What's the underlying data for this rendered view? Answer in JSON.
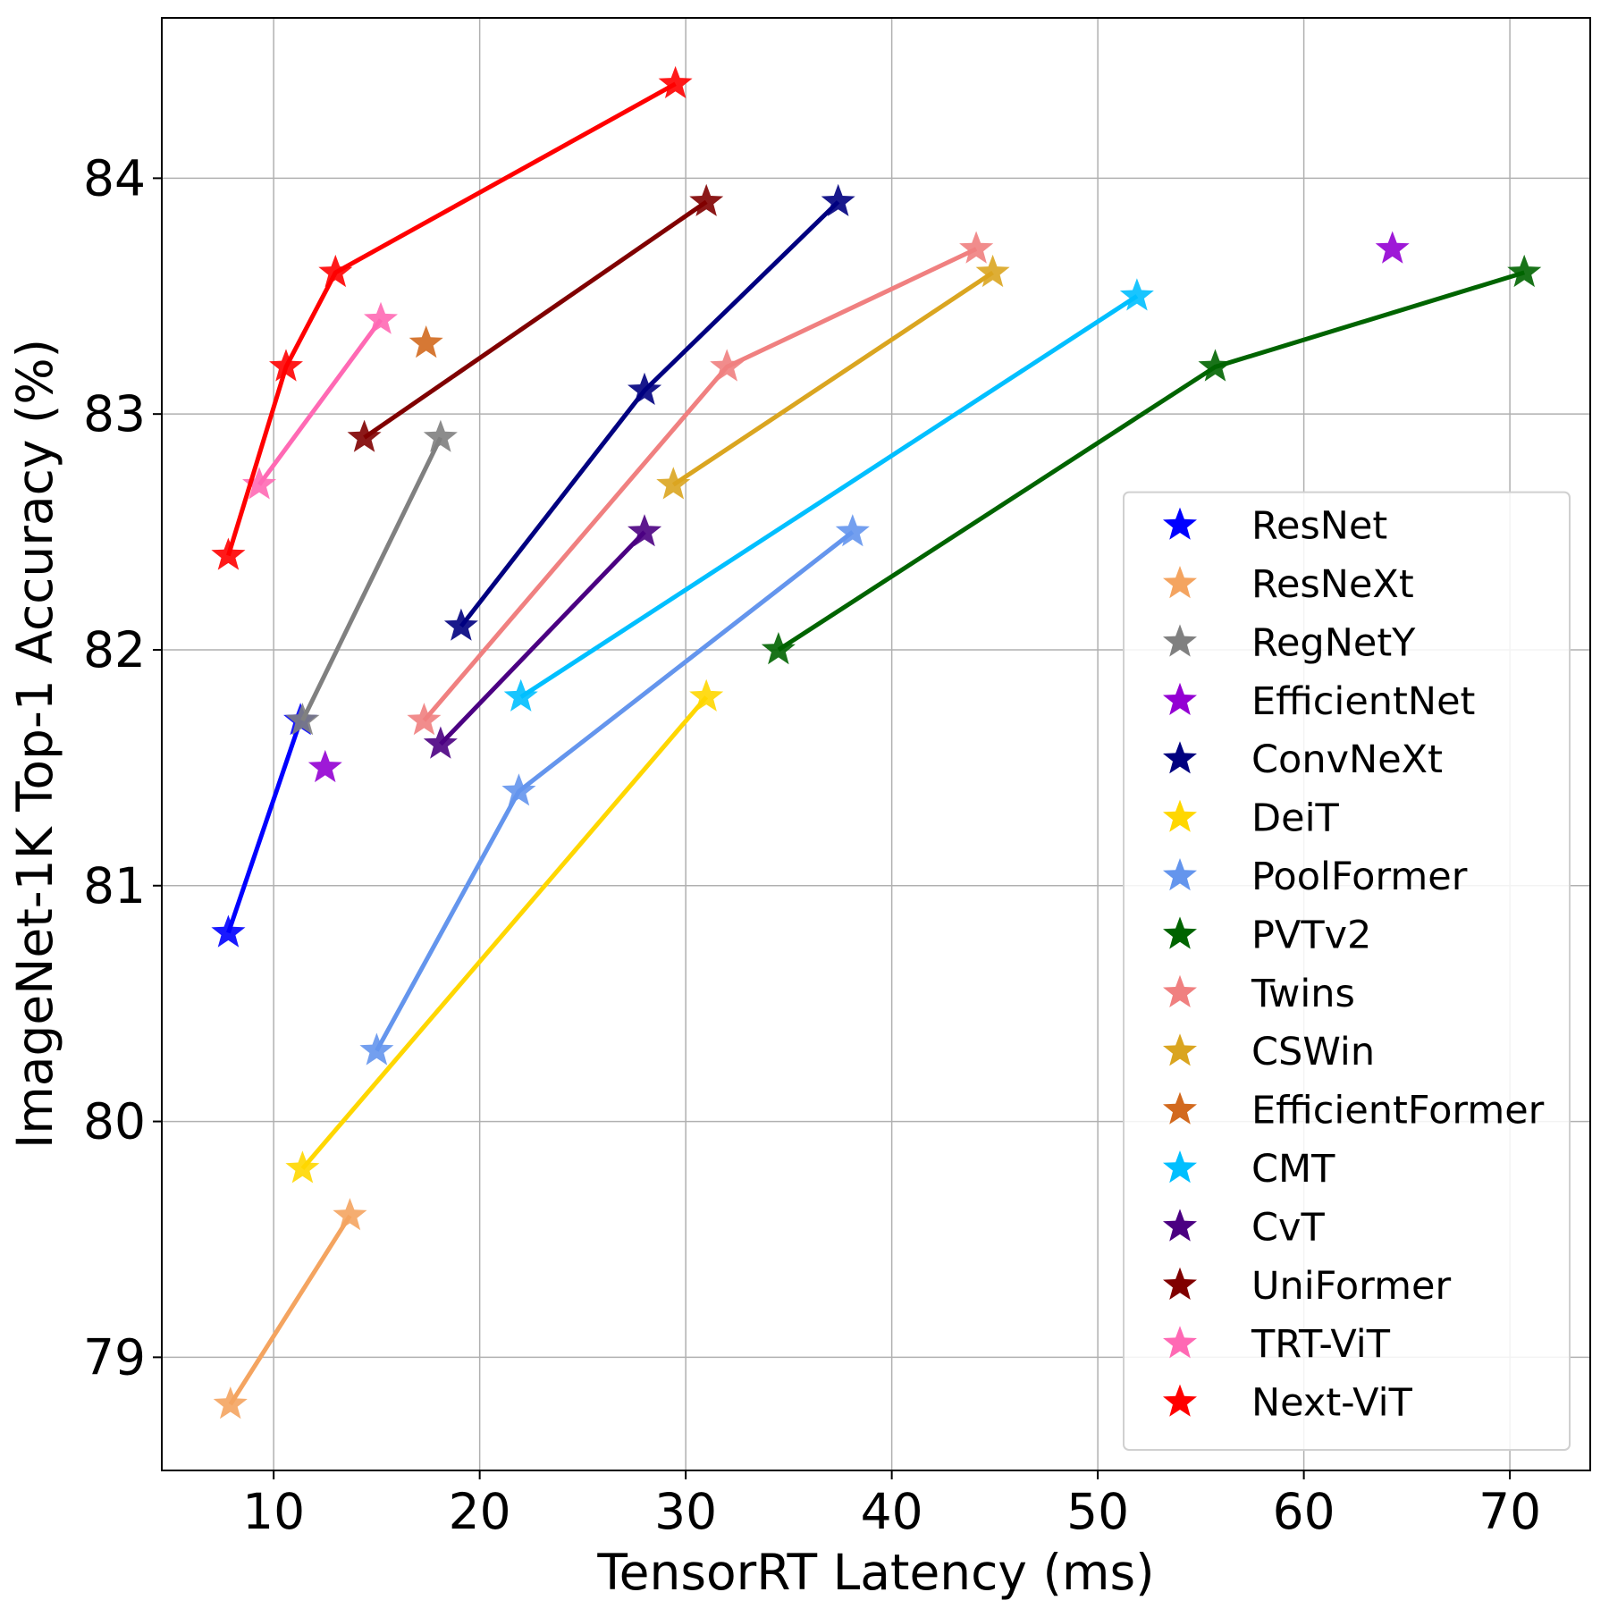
{
  "chart_data": {
    "type": "scatter",
    "xlabel": "TensorRT Latency (ms)",
    "ylabel": "ImageNet-1K Top-1 Accuracy (%)",
    "xlim": [
      4.57,
      73.9
    ],
    "ylim": [
      78.52,
      84.68
    ],
    "xticks": [
      10,
      20,
      30,
      40,
      50,
      60,
      70
    ],
    "yticks": [
      79,
      80,
      81,
      82,
      83,
      84
    ],
    "grid": true,
    "legend": "lower right",
    "marker": "star",
    "series": [
      {
        "name": "ResNet",
        "color": "#0000ff",
        "line": true,
        "x": [
          7.8,
          11.3
        ],
        "values": [
          80.8,
          81.7
        ]
      },
      {
        "name": "ResNeXt",
        "color": "#f4a460",
        "line": true,
        "x": [
          7.9,
          13.7
        ],
        "values": [
          78.8,
          79.6
        ]
      },
      {
        "name": "RegNetY",
        "color": "#808080",
        "line": true,
        "x": [
          11.4,
          18.1
        ],
        "values": [
          81.7,
          82.9
        ]
      },
      {
        "name": "EfficientNet",
        "color": "#9400d3",
        "line": false,
        "x": [
          12.5,
          64.3
        ],
        "values": [
          81.5,
          83.7
        ]
      },
      {
        "name": "ConvNeXt",
        "color": "#000080",
        "line": true,
        "x": [
          19.1,
          28.0,
          37.4
        ],
        "values": [
          82.1,
          83.1,
          83.9
        ]
      },
      {
        "name": "DeiT",
        "color": "#ffd700",
        "line": true,
        "x": [
          11.4,
          31.0
        ],
        "values": [
          79.8,
          81.8
        ]
      },
      {
        "name": "PoolFormer",
        "color": "#6495ed",
        "line": true,
        "x": [
          15.0,
          21.9,
          38.1
        ],
        "values": [
          80.3,
          81.4,
          82.5
        ]
      },
      {
        "name": "PVTv2",
        "color": "#006400",
        "line": true,
        "x": [
          34.5,
          55.7,
          70.7
        ],
        "values": [
          82.0,
          83.2,
          83.6
        ]
      },
      {
        "name": "Twins",
        "color": "#f08080",
        "line": true,
        "x": [
          17.3,
          32.0,
          44.1
        ],
        "values": [
          81.7,
          83.2,
          83.7
        ]
      },
      {
        "name": "CSWin",
        "color": "#daa520",
        "line": true,
        "x": [
          29.4,
          44.9
        ],
        "values": [
          82.7,
          83.6
        ]
      },
      {
        "name": "EfficientFormer",
        "color": "#d2691e",
        "line": false,
        "x": [
          17.4
        ],
        "values": [
          83.3
        ]
      },
      {
        "name": "CMT",
        "color": "#00bfff",
        "line": true,
        "x": [
          22.0,
          51.9
        ],
        "values": [
          81.8,
          83.5
        ]
      },
      {
        "name": "CvT",
        "color": "#4b0082",
        "line": true,
        "x": [
          18.1,
          28.0
        ],
        "values": [
          81.6,
          82.5
        ]
      },
      {
        "name": "UniFormer",
        "color": "#800000",
        "line": true,
        "x": [
          14.4,
          31.0
        ],
        "values": [
          82.9,
          83.9
        ]
      },
      {
        "name": "TRT-ViT",
        "color": "#ff69b4",
        "line": true,
        "x": [
          9.3,
          15.2
        ],
        "values": [
          82.7,
          83.4
        ]
      },
      {
        "name": "Next-ViT",
        "color": "#ff0000",
        "line": true,
        "x": [
          7.8,
          10.6,
          13.0,
          29.5
        ],
        "values": [
          82.4,
          83.2,
          83.6,
          84.4
        ]
      }
    ]
  }
}
